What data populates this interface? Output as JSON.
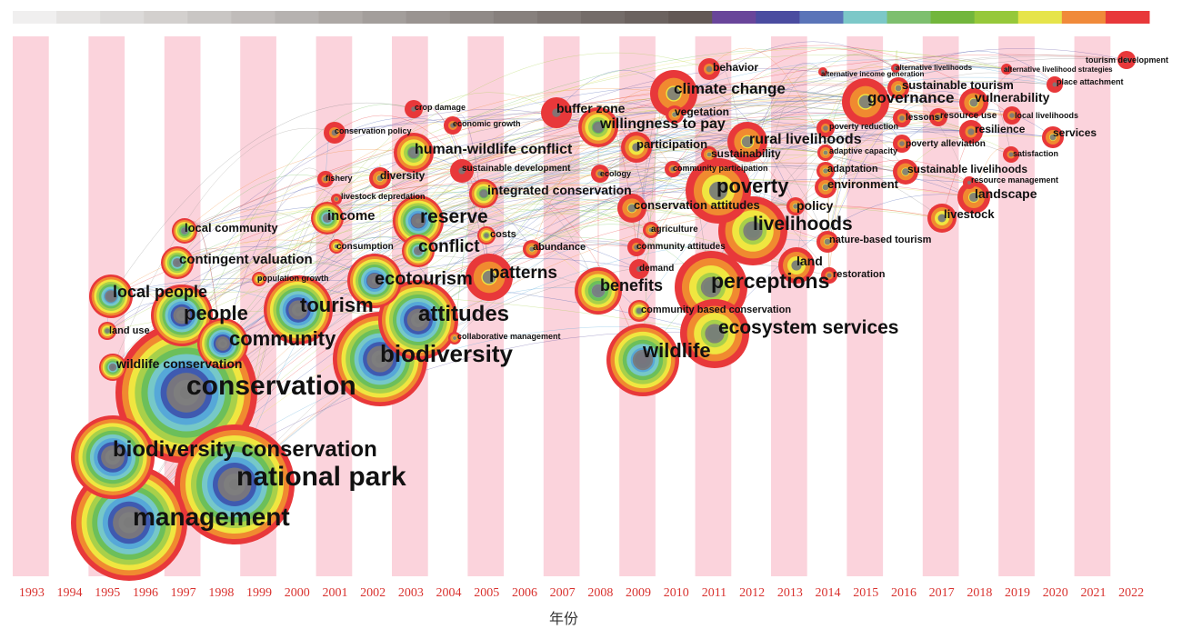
{
  "axis": {
    "x_title": "年份"
  },
  "years": [
    "1993",
    "1994",
    "1995",
    "1996",
    "1997",
    "1998",
    "1999",
    "2000",
    "2001",
    "2002",
    "2003",
    "2004",
    "2005",
    "2006",
    "2007",
    "2008",
    "2009",
    "2010",
    "2011",
    "2012",
    "2013",
    "2014",
    "2015",
    "2016",
    "2017",
    "2018",
    "2019",
    "2020",
    "2021",
    "2022"
  ],
  "legend_colors": [
    "#f0efef",
    "#e6e4e3",
    "#dcdad9",
    "#d3d0ce",
    "#c9c6c4",
    "#c0bcba",
    "#b6b2b0",
    "#ada8a5",
    "#a39e9b",
    "#9a9491",
    "#908a87",
    "#87807d",
    "#7e7673",
    "#746c69",
    "#6b625f",
    "#625855",
    "#69459a",
    "#4a4ca0",
    "#5a74b8",
    "#7cc8c8",
    "#7dbf6e",
    "#72b63c",
    "#96c83a",
    "#e6e44a",
    "#f08a3a",
    "#e8383a"
  ],
  "ring_palette": [
    "#808080",
    "#a0a0a0",
    "#5b4ea0",
    "#3f5ab0",
    "#56a8d8",
    "#76c8c8",
    "#6cbf5a",
    "#a8d04a",
    "#f0e640",
    "#f08a30",
    "#e8383a"
  ],
  "keywords": [
    {
      "label": "management",
      "year": 1996,
      "size": 64,
      "count": 11
    },
    {
      "label": "national park",
      "year": 1998,
      "size": 66,
      "count": 11
    },
    {
      "label": "biodiversity conservation",
      "year": 1995,
      "size": 46,
      "count": 11
    },
    {
      "label": "conservation",
      "year": 1997,
      "size": 78,
      "count": 11
    },
    {
      "label": "wildlife conservation",
      "year": 1995,
      "size": 15,
      "count": 8
    },
    {
      "label": "land use",
      "year": 1995,
      "size": 10,
      "count": 5
    },
    {
      "label": "local people",
      "year": 1995,
      "size": 24,
      "count": 9
    },
    {
      "label": "people",
      "year": 1997,
      "size": 34,
      "count": 11
    },
    {
      "label": "community",
      "year": 1998,
      "size": 28,
      "count": 11
    },
    {
      "label": "contingent valuation",
      "year": 1997,
      "size": 18,
      "count": 8
    },
    {
      "label": "local community",
      "year": 1997,
      "size": 14,
      "count": 7
    },
    {
      "label": "tourism",
      "year": 2000,
      "size": 38,
      "count": 11
    },
    {
      "label": "biodiversity",
      "year": 2002,
      "size": 52,
      "count": 11
    },
    {
      "label": "attitudes",
      "year": 2003,
      "size": 44,
      "count": 11
    },
    {
      "label": "ecotourism",
      "year": 2002,
      "size": 30,
      "count": 10
    },
    {
      "label": "population growth",
      "year": 1999,
      "size": 8,
      "count": 4
    },
    {
      "label": "income",
      "year": 2001,
      "size": 18,
      "count": 8
    },
    {
      "label": "consumption",
      "year": 2001,
      "size": 8,
      "count": 4
    },
    {
      "label": "reserve",
      "year": 2003,
      "size": 28,
      "count": 10
    },
    {
      "label": "conflict",
      "year": 2003,
      "size": 18,
      "count": 8
    },
    {
      "label": "patterns",
      "year": 2005,
      "size": 26,
      "count": 3
    },
    {
      "label": "costs",
      "year": 2005,
      "size": 10,
      "count": 5
    },
    {
      "label": "collaborative management",
      "year": 2004,
      "size": 7,
      "count": 3
    },
    {
      "label": "abundance",
      "year": 2006,
      "size": 10,
      "count": 3
    },
    {
      "label": "human-wildlife conflict",
      "year": 2003,
      "size": 22,
      "count": 6
    },
    {
      "label": "diversity",
      "year": 2002,
      "size": 12,
      "count": 3
    },
    {
      "label": "fishery",
      "year": 2001,
      "size": 9,
      "count": 2
    },
    {
      "label": "livestock depredation",
      "year": 2002,
      "size": 6,
      "count": 2
    },
    {
      "label": "conservation policy",
      "year": 2001,
      "size": 12,
      "count": 2
    },
    {
      "label": "crop damage",
      "year": 2003,
      "size": 10,
      "count": 1
    },
    {
      "label": "economic growth",
      "year": 2004,
      "size": 10,
      "count": 2
    },
    {
      "label": "sustainable development",
      "year": 2004,
      "size": 13,
      "count": 1
    },
    {
      "label": "integrated conservation",
      "year": 2005,
      "size": 16,
      "count": 6
    },
    {
      "label": "buffer zone",
      "year": 2007,
      "size": 17,
      "count": 1
    },
    {
      "label": "ecology",
      "year": 2008,
      "size": 10,
      "count": 2
    },
    {
      "label": "willingness to pay",
      "year": 2008,
      "size": 22,
      "count": 6
    },
    {
      "label": "participation",
      "year": 2009,
      "size": 17,
      "count": 4
    },
    {
      "label": "conservation attitudes",
      "year": 2009,
      "size": 16,
      "count": 3
    },
    {
      "label": "agriculture",
      "year": 2009,
      "size": 9,
      "count": 3
    },
    {
      "label": "community attitudes",
      "year": 2009,
      "size": 10,
      "count": 2
    },
    {
      "label": "demand",
      "year": 2009,
      "size": 11,
      "count": 1
    },
    {
      "label": "benefits",
      "year": 2008,
      "size": 26,
      "count": 7
    },
    {
      "label": "community based conservation",
      "year": 2009,
      "size": 12,
      "count": 5
    },
    {
      "label": "wildlife",
      "year": 2010,
      "size": 40,
      "count": 9
    },
    {
      "label": "climate change",
      "year": 2010,
      "size": 26,
      "count": 3
    },
    {
      "label": "vegetation",
      "year": 2011,
      "size": 10,
      "count": 3
    },
    {
      "label": "behavior",
      "year": 2011,
      "size": 12,
      "count": 2
    },
    {
      "label": "community participation",
      "year": 2010,
      "size": 9,
      "count": 2
    },
    {
      "label": "sustainability",
      "year": 2011,
      "size": 9,
      "count": 3
    },
    {
      "label": "rural livelihoods",
      "year": 2012,
      "size": 22,
      "count": 3
    },
    {
      "label": "poverty",
      "year": 2011,
      "size": 36,
      "count": 4
    },
    {
      "label": "livelihoods",
      "year": 2012,
      "size": 38,
      "count": 5
    },
    {
      "label": "perceptions",
      "year": 2011,
      "size": 40,
      "count": 5
    },
    {
      "label": "ecosystem services",
      "year": 2012,
      "size": 38,
      "count": 5
    },
    {
      "label": "policy",
      "year": 2013,
      "size": 10,
      "count": 3
    },
    {
      "label": "land",
      "year": 2013,
      "size": 20,
      "count": 4
    },
    {
      "label": "restoration",
      "year": 2014,
      "size": 9,
      "count": 2
    },
    {
      "label": "nature-based tourism",
      "year": 2014,
      "size": 12,
      "count": 3
    },
    {
      "label": "environment",
      "year": 2014,
      "size": 12,
      "count": 3
    },
    {
      "label": "adaptation",
      "year": 2014,
      "size": 10,
      "count": 3
    },
    {
      "label": "adaptive capacity",
      "year": 2014,
      "size": 9,
      "count": 3
    },
    {
      "label": "poverty reduction",
      "year": 2014,
      "size": 10,
      "count": 2
    },
    {
      "label": "alternative income generation",
      "year": 2014,
      "size": 5,
      "count": 1
    },
    {
      "label": "governance",
      "year": 2015,
      "size": 26,
      "count": 3
    },
    {
      "label": "sustainable tourism",
      "year": 2016,
      "size": 12,
      "count": 3
    },
    {
      "label": "alternative livelihoods",
      "year": 2016,
      "size": 5,
      "count": 1
    },
    {
      "label": "lessons",
      "year": 2016,
      "size": 10,
      "count": 2
    },
    {
      "label": "poverty alleviation",
      "year": 2016,
      "size": 10,
      "count": 2
    },
    {
      "label": "sustainable livelihoods",
      "year": 2016,
      "size": 14,
      "count": 3
    },
    {
      "label": "livestock",
      "year": 2017,
      "size": 16,
      "count": 4
    },
    {
      "label": "resource use",
      "year": 2017,
      "size": 10,
      "count": 2
    },
    {
      "label": "vulnerability",
      "year": 2018,
      "size": 16,
      "count": 3
    },
    {
      "label": "resilience",
      "year": 2018,
      "size": 13,
      "count": 2
    },
    {
      "label": "resource management",
      "year": 2018,
      "size": 7,
      "count": 1
    },
    {
      "label": "landscape",
      "year": 2018,
      "size": 18,
      "count": 3
    },
    {
      "label": "local livelihoods",
      "year": 2019,
      "size": 10,
      "count": 2
    },
    {
      "label": "alternative livelihood strategies",
      "year": 2019,
      "size": 6,
      "count": 1
    },
    {
      "label": "satisfaction",
      "year": 2019,
      "size": 9,
      "count": 2
    },
    {
      "label": "place attachment",
      "year": 2020,
      "size": 9,
      "count": 1
    },
    {
      "label": "services",
      "year": 2020,
      "size": 12,
      "count": 3
    },
    {
      "label": "tourism development",
      "year": 2022,
      "size": 10,
      "count": 1
    }
  ]
}
